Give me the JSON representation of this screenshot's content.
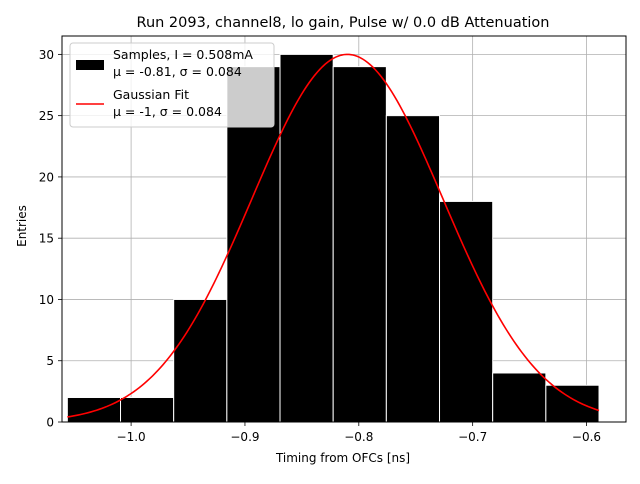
{
  "chart_data": {
    "type": "bar",
    "title": "Run 2093, channel8, lo gain, Pulse w/ 0.0 dB Attenuation",
    "xlabel": "Timing from OFCs [ns]",
    "ylabel": "Entries",
    "xlim": [
      -1.0607,
      -0.5653
    ],
    "ylim": [
      0,
      31.5
    ],
    "grid": true,
    "x_ticks": [
      -1.0,
      -0.9,
      -0.8,
      -0.7,
      -0.6
    ],
    "x_tick_labels": [
      "−1.0",
      "−0.9",
      "−0.8",
      "−0.7",
      "−0.6"
    ],
    "y_ticks": [
      0,
      5,
      10,
      15,
      20,
      25,
      30
    ],
    "y_tick_labels": [
      "0",
      "5",
      "10",
      "15",
      "20",
      "25",
      "30"
    ],
    "histogram": {
      "bin_edges": [
        -1.056,
        -1.0093,
        -0.9626,
        -0.9159,
        -0.8692,
        -0.8225,
        -0.7758,
        -0.7291,
        -0.6824,
        -0.6357,
        -0.589
      ],
      "counts": [
        2,
        2,
        10,
        29,
        30,
        29,
        25,
        18,
        4,
        3
      ],
      "color": "#000000",
      "edgecolor": "#ffffff"
    },
    "fit": {
      "amplitude": 30,
      "mean": -0.81,
      "sigma": 0.084,
      "color": "#ff0000"
    },
    "legend": {
      "placement": "top-left",
      "entries": [
        {
          "swatch": "patch",
          "color": "#000000",
          "line1": "Samples, I = 0.508mA",
          "line2": "μ = -0.81, σ = 0.084"
        },
        {
          "swatch": "line",
          "color": "#ff0000",
          "line1": "Gaussian Fit",
          "line2": "μ = -1, σ = 0.084"
        }
      ]
    }
  }
}
